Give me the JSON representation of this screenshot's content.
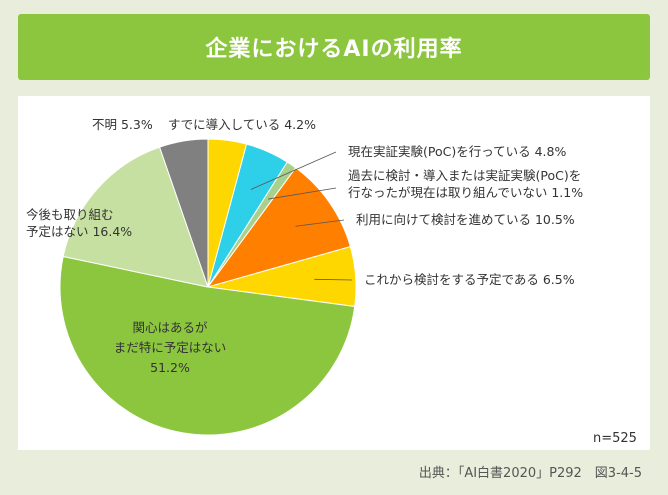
{
  "title": "企業におけるAIの利用率",
  "note": "n=525",
  "source": "出典：「AI白書2020」P292　図3-4-5",
  "chart_data": {
    "type": "pie",
    "title": "企業におけるAIの利用率",
    "slices": [
      {
        "lines": [
          "すでに導入している 4.2%"
        ],
        "value": 4.2,
        "color": "#ffd700"
      },
      {
        "lines": [
          "現在実証実験(PoC)を行っている 4.8%"
        ],
        "value": 4.8,
        "color": "#2dd0e8"
      },
      {
        "lines": [
          "過去に検討・導入または実証実験(PoC)を",
          "行なったが現在は取り組んでいない 1.1%"
        ],
        "value": 1.1,
        "color": "#a9d18e"
      },
      {
        "lines": [
          "利用に向けて検討を進めている 10.5%"
        ],
        "value": 10.5,
        "color": "#ff7f00"
      },
      {
        "lines": [
          "これから検討をする予定である 6.5%"
        ],
        "value": 6.5,
        "color": "#ffd700"
      },
      {
        "lines": [
          "関心はあるが",
          "まだ特に予定はない",
          "51.2%"
        ],
        "value": 51.2,
        "color": "#8cc63f"
      },
      {
        "lines": [
          "今後も取り組む",
          "予定はない 16.4%"
        ],
        "value": 16.4,
        "color": "#c5e0a0"
      },
      {
        "lines": [
          "不明 5.3%"
        ],
        "value": 5.3,
        "color": "#808080"
      }
    ]
  }
}
